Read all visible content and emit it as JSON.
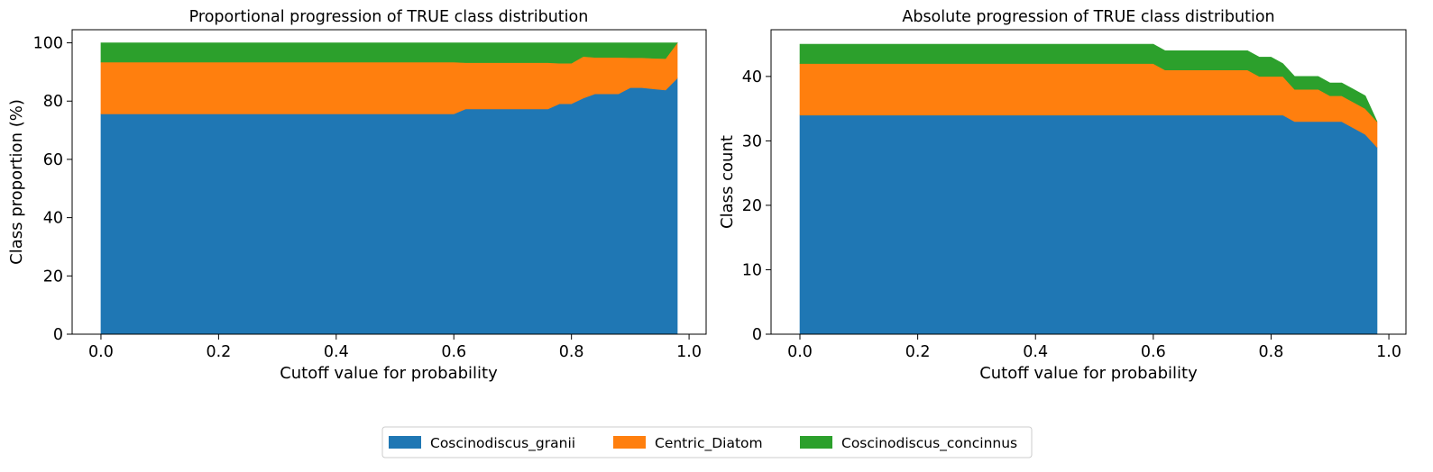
{
  "chart_data": [
    {
      "type": "area",
      "stacked": true,
      "title": "Proportional progression of TRUE class distribution",
      "xlabel": "Cutoff value for probability",
      "ylabel": "Class proportion (%)",
      "xlim": [
        -0.049,
        1.029
      ],
      "ylim": [
        0,
        104.5
      ],
      "xticks": [
        "0.0",
        "0.2",
        "0.4",
        "0.6",
        "0.8",
        "1.0"
      ],
      "yticks": [
        "0",
        "20",
        "40",
        "60",
        "80",
        "100"
      ],
      "grid": false,
      "x": [
        0.0,
        0.02,
        0.04,
        0.06,
        0.08,
        0.1,
        0.12,
        0.14,
        0.16,
        0.18,
        0.2,
        0.22,
        0.24,
        0.26,
        0.28,
        0.3,
        0.32,
        0.34,
        0.36,
        0.38,
        0.4,
        0.42,
        0.44,
        0.46,
        0.48,
        0.5,
        0.52,
        0.54,
        0.56,
        0.58,
        0.6,
        0.62,
        0.64,
        0.66,
        0.68,
        0.7,
        0.72,
        0.74,
        0.76,
        0.78,
        0.8,
        0.82,
        0.84,
        0.86,
        0.88,
        0.9,
        0.92,
        0.94,
        0.96,
        0.98
      ],
      "series": [
        {
          "name": "Coscinodiscus_granii",
          "color": "#1f77b4",
          "values": [
            75.6,
            75.6,
            75.6,
            75.6,
            75.6,
            75.6,
            75.6,
            75.6,
            75.6,
            75.6,
            75.6,
            75.6,
            75.6,
            75.6,
            75.6,
            75.6,
            75.6,
            75.6,
            75.6,
            75.6,
            75.6,
            75.6,
            75.6,
            75.6,
            75.6,
            75.6,
            75.6,
            75.6,
            75.6,
            75.6,
            75.6,
            77.3,
            77.3,
            77.3,
            77.3,
            77.3,
            77.3,
            77.3,
            77.3,
            79.1,
            79.1,
            81.0,
            82.5,
            82.5,
            82.5,
            84.6,
            84.6,
            84.2,
            83.8,
            87.9
          ]
        },
        {
          "name": "Centric_Diatom",
          "color": "#ff7f0e",
          "values": [
            17.8,
            17.8,
            17.8,
            17.8,
            17.8,
            17.8,
            17.8,
            17.8,
            17.8,
            17.8,
            17.8,
            17.8,
            17.8,
            17.8,
            17.8,
            17.8,
            17.8,
            17.8,
            17.8,
            17.8,
            17.8,
            17.8,
            17.8,
            17.8,
            17.8,
            17.8,
            17.8,
            17.8,
            17.8,
            17.8,
            17.8,
            15.9,
            15.9,
            15.9,
            15.9,
            15.9,
            15.9,
            15.9,
            15.9,
            13.9,
            13.9,
            14.3,
            12.5,
            12.5,
            12.5,
            10.3,
            10.3,
            10.5,
            10.8,
            12.1
          ]
        },
        {
          "name": "Coscinodiscus_concinnus",
          "color": "#2ca02c",
          "values": [
            6.6,
            6.6,
            6.6,
            6.6,
            6.6,
            6.6,
            6.6,
            6.6,
            6.6,
            6.6,
            6.6,
            6.6,
            6.6,
            6.6,
            6.6,
            6.6,
            6.6,
            6.6,
            6.6,
            6.6,
            6.6,
            6.6,
            6.6,
            6.6,
            6.6,
            6.6,
            6.6,
            6.6,
            6.6,
            6.6,
            6.6,
            6.8,
            6.8,
            6.8,
            6.8,
            6.8,
            6.8,
            6.8,
            6.8,
            7.0,
            7.0,
            4.7,
            5.0,
            5.0,
            5.0,
            5.1,
            5.1,
            5.3,
            5.4,
            0.0
          ]
        }
      ]
    },
    {
      "type": "area",
      "stacked": true,
      "title": "Absolute progression of TRUE class distribution",
      "xlabel": "Cutoff value for probability",
      "ylabel": "Class count",
      "xlim": [
        -0.049,
        1.029
      ],
      "ylim": [
        0,
        47.25
      ],
      "xticks": [
        "0.0",
        "0.2",
        "0.4",
        "0.6",
        "0.8",
        "1.0"
      ],
      "yticks": [
        "0",
        "10",
        "20",
        "30",
        "40"
      ],
      "grid": false,
      "x": [
        0.0,
        0.02,
        0.04,
        0.06,
        0.08,
        0.1,
        0.12,
        0.14,
        0.16,
        0.18,
        0.2,
        0.22,
        0.24,
        0.26,
        0.28,
        0.3,
        0.32,
        0.34,
        0.36,
        0.38,
        0.4,
        0.42,
        0.44,
        0.46,
        0.48,
        0.5,
        0.52,
        0.54,
        0.56,
        0.58,
        0.6,
        0.62,
        0.64,
        0.66,
        0.68,
        0.7,
        0.72,
        0.74,
        0.76,
        0.78,
        0.8,
        0.82,
        0.84,
        0.86,
        0.88,
        0.9,
        0.92,
        0.94,
        0.96,
        0.98
      ],
      "series": [
        {
          "name": "Coscinodiscus_granii",
          "color": "#1f77b4",
          "values": [
            34,
            34,
            34,
            34,
            34,
            34,
            34,
            34,
            34,
            34,
            34,
            34,
            34,
            34,
            34,
            34,
            34,
            34,
            34,
            34,
            34,
            34,
            34,
            34,
            34,
            34,
            34,
            34,
            34,
            34,
            34,
            34,
            34,
            34,
            34,
            34,
            34,
            34,
            34,
            34,
            34,
            34,
            33,
            33,
            33,
            33,
            33,
            32,
            31,
            29
          ]
        },
        {
          "name": "Centric_Diatom",
          "color": "#ff7f0e",
          "values": [
            8,
            8,
            8,
            8,
            8,
            8,
            8,
            8,
            8,
            8,
            8,
            8,
            8,
            8,
            8,
            8,
            8,
            8,
            8,
            8,
            8,
            8,
            8,
            8,
            8,
            8,
            8,
            8,
            8,
            8,
            8,
            7,
            7,
            7,
            7,
            7,
            7,
            7,
            7,
            6,
            6,
            6,
            5,
            5,
            5,
            4,
            4,
            4,
            4,
            4
          ]
        },
        {
          "name": "Coscinodiscus_concinnus",
          "color": "#2ca02c",
          "values": [
            3,
            3,
            3,
            3,
            3,
            3,
            3,
            3,
            3,
            3,
            3,
            3,
            3,
            3,
            3,
            3,
            3,
            3,
            3,
            3,
            3,
            3,
            3,
            3,
            3,
            3,
            3,
            3,
            3,
            3,
            3,
            3,
            3,
            3,
            3,
            3,
            3,
            3,
            3,
            3,
            3,
            2,
            2,
            2,
            2,
            2,
            2,
            2,
            2,
            0
          ]
        }
      ]
    }
  ],
  "legend": {
    "placement": "bottom-center",
    "items": [
      {
        "label": "Coscinodiscus_granii",
        "color": "#1f77b4"
      },
      {
        "label": "Centric_Diatom",
        "color": "#ff7f0e"
      },
      {
        "label": "Coscinodiscus_concinnus",
        "color": "#2ca02c"
      }
    ]
  }
}
